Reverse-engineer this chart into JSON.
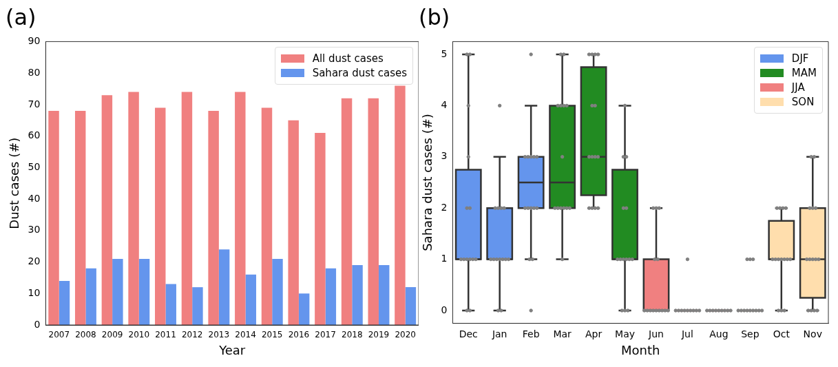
{
  "chart_data": [
    {
      "type": "bar",
      "title": "(a)",
      "xlabel": "Year",
      "ylabel": "Dust cases (#)",
      "categories": [
        "2007",
        "2008",
        "2009",
        "2010",
        "2011",
        "2012",
        "2013",
        "2014",
        "2015",
        "2016",
        "2017",
        "2018",
        "2019",
        "2020"
      ],
      "series": [
        {
          "name": "All dust cases",
          "color": "#f08080",
          "values": [
            68,
            68,
            73,
            74,
            69,
            74,
            68,
            74,
            69,
            65,
            61,
            72,
            72,
            76
          ]
        },
        {
          "name": "Sahara dust cases",
          "color": "#6495ed",
          "values": [
            14,
            18,
            21,
            21,
            13,
            12,
            24,
            16,
            21,
            10,
            18,
            19,
            19,
            12
          ]
        }
      ],
      "ylim": [
        0,
        90
      ],
      "yticks": [
        0,
        10,
        20,
        30,
        40,
        50,
        60,
        70,
        80,
        90
      ],
      "grid": false,
      "legend": "top right"
    },
    {
      "type": "box",
      "title": "(b)",
      "xlabel": "Month",
      "ylabel": "Sahara dust cases (#)",
      "categories": [
        "Dec",
        "Jan",
        "Feb",
        "Mar",
        "Apr",
        "May",
        "Jun",
        "Jul",
        "Aug",
        "Sep",
        "Oct",
        "Nov"
      ],
      "series": [
        {
          "name": "DJF",
          "color": "#6495ed",
          "boxes": [
            {
              "low": 0,
              "q1": 1,
              "median": 1,
              "q3": 2.75,
              "high": 5
            },
            {
              "low": 0,
              "q1": 1,
              "median": 1,
              "q3": 2,
              "high": 3
            },
            {
              "low": 1,
              "q1": 2,
              "median": 2.5,
              "q3": 3,
              "high": 4
            },
            null,
            null,
            null,
            null,
            null,
            null,
            null,
            null,
            null
          ]
        },
        {
          "name": "MAM",
          "color": "#228b22",
          "boxes": [
            null,
            null,
            null,
            {
              "low": 1,
              "q1": 2,
              "median": 2.5,
              "q3": 4,
              "high": 5
            },
            {
              "low": 2,
              "q1": 2.25,
              "median": 3,
              "q3": 4.75,
              "high": 5
            },
            {
              "low": 0,
              "q1": 1,
              "median": 1,
              "q3": 2.75,
              "high": 4
            },
            null,
            null,
            null,
            null,
            null,
            null
          ]
        },
        {
          "name": "JJA",
          "color": "#f08080",
          "boxes": [
            null,
            null,
            null,
            null,
            null,
            null,
            {
              "low": 0,
              "q1": 0,
              "median": 0,
              "q3": 1,
              "high": 2
            },
            {
              "low": 0,
              "q1": 0,
              "median": 0,
              "q3": 0,
              "high": 0
            },
            {
              "low": 0,
              "q1": 0,
              "median": 0,
              "q3": 0,
              "high": 0
            },
            null,
            null,
            null
          ]
        },
        {
          "name": "SON",
          "color": "#ffdead",
          "boxes": [
            null,
            null,
            null,
            null,
            null,
            null,
            null,
            null,
            null,
            {
              "low": 0,
              "q1": 0,
              "median": 0,
              "q3": 0,
              "high": 0
            },
            {
              "low": 0,
              "q1": 1,
              "median": 1,
              "q3": 1.75,
              "high": 2
            },
            {
              "low": 0,
              "q1": 0.25,
              "median": 1,
              "q3": 2,
              "high": 3
            }
          ]
        },
        {
          "type": "scatter",
          "color": "#808080",
          "marker": "circle",
          "x": [
            "Dec",
            "Dec",
            "Dec",
            "Dec",
            "Dec",
            "Dec",
            "Dec",
            "Dec",
            "Dec",
            "Dec",
            "Dec",
            "Dec",
            "Dec",
            "Dec",
            "Jan",
            "Jan",
            "Jan",
            "Jan",
            "Jan",
            "Jan",
            "Jan",
            "Jan",
            "Jan",
            "Jan",
            "Jan",
            "Jan",
            "Jan",
            "Jan",
            "Feb",
            "Feb",
            "Feb",
            "Feb",
            "Feb",
            "Feb",
            "Feb",
            "Feb",
            "Feb",
            "Feb",
            "Feb",
            "Feb",
            "Feb",
            "Feb",
            "Mar",
            "Mar",
            "Mar",
            "Mar",
            "Mar",
            "Mar",
            "Mar",
            "Mar",
            "Mar",
            "Mar",
            "Mar",
            "Mar",
            "Mar",
            "Mar",
            "Apr",
            "Apr",
            "Apr",
            "Apr",
            "Apr",
            "Apr",
            "Apr",
            "Apr",
            "Apr",
            "Apr",
            "Apr",
            "Apr",
            "Apr",
            "Apr",
            "May",
            "May",
            "May",
            "May",
            "May",
            "May",
            "May",
            "May",
            "May",
            "May",
            "May",
            "May",
            "May",
            "May",
            "Jun",
            "Jun",
            "Jun",
            "Jun",
            "Jun",
            "Jun",
            "Jun",
            "Jun",
            "Jun",
            "Jun",
            "Jun",
            "Jun",
            "Jun",
            "Jun",
            "Jul",
            "Jul",
            "Jul",
            "Jul",
            "Jul",
            "Jul",
            "Jul",
            "Jul",
            "Jul",
            "Jul",
            "Aug",
            "Aug",
            "Aug",
            "Aug",
            "Aug",
            "Aug",
            "Aug",
            "Aug",
            "Aug",
            "Sep",
            "Sep",
            "Sep",
            "Sep",
            "Sep",
            "Sep",
            "Sep",
            "Sep",
            "Sep",
            "Sep",
            "Sep",
            "Sep",
            "Oct",
            "Oct",
            "Oct",
            "Oct",
            "Oct",
            "Oct",
            "Oct",
            "Oct",
            "Oct",
            "Oct",
            "Oct",
            "Oct",
            "Oct",
            "Oct",
            "Nov",
            "Nov",
            "Nov",
            "Nov",
            "Nov",
            "Nov",
            "Nov",
            "Nov",
            "Nov",
            "Nov",
            "Nov",
            "Nov",
            "Nov",
            "Nov"
          ],
          "values": [
            5,
            5,
            4,
            3,
            2,
            2,
            1,
            1,
            1,
            1,
            1,
            1,
            0,
            0,
            4,
            2,
            2,
            2,
            2,
            1,
            1,
            1,
            1,
            1,
            1,
            1,
            0,
            0,
            5,
            3,
            3,
            3,
            3,
            3,
            2,
            2,
            2,
            2,
            2,
            1,
            1,
            0,
            5,
            5,
            4,
            4,
            4,
            4,
            3,
            2,
            2,
            2,
            2,
            2,
            2,
            1,
            5,
            5,
            5,
            5,
            4,
            4,
            3,
            3,
            3,
            3,
            2,
            2,
            2,
            2,
            4,
            3,
            3,
            2,
            2,
            1,
            1,
            1,
            1,
            1,
            1,
            0,
            0,
            0,
            2,
            2,
            2,
            1,
            1,
            0,
            0,
            0,
            0,
            0,
            0,
            0,
            0,
            0,
            1,
            0,
            0,
            0,
            0,
            0,
            0,
            0,
            0,
            0,
            0,
            0,
            0,
            0,
            0,
            0,
            0,
            0,
            0,
            1,
            1,
            1,
            0,
            0,
            0,
            0,
            0,
            0,
            0,
            0,
            0,
            2,
            2,
            2,
            2,
            1,
            1,
            1,
            1,
            1,
            1,
            1,
            0,
            0,
            0,
            3,
            3,
            2,
            2,
            2,
            1,
            1,
            1,
            1,
            1,
            0,
            0,
            0,
            0
          ]
        }
      ],
      "ylim": [
        -0.25,
        5.25
      ],
      "yticks": [
        0,
        1,
        2,
        3,
        4,
        5
      ],
      "grid": false,
      "legend": "top right"
    }
  ]
}
